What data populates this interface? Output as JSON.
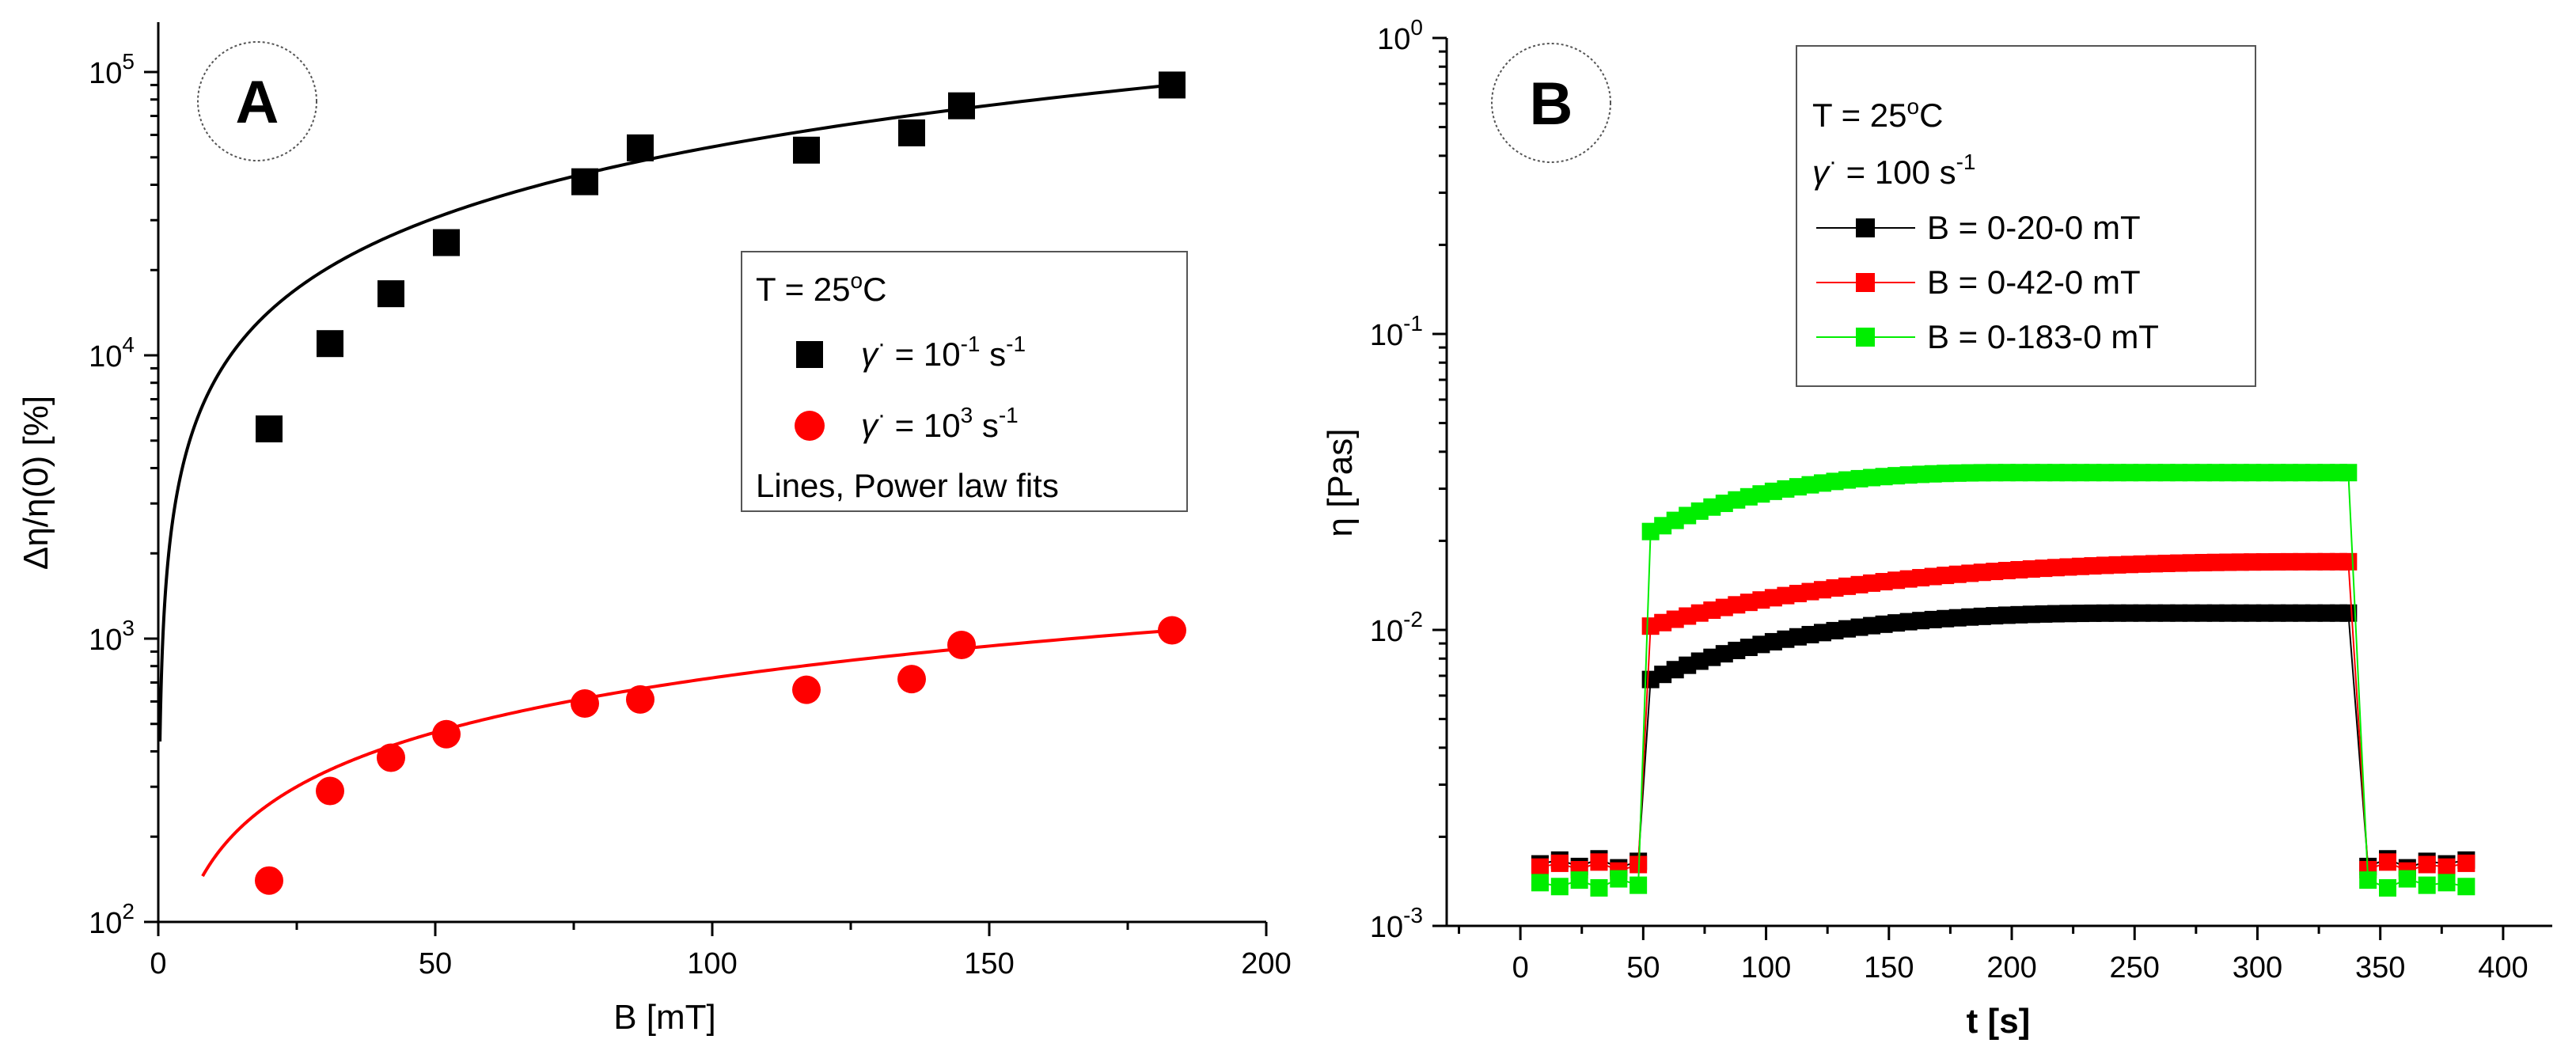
{
  "chart_data": [
    {
      "type": "scatter",
      "panel_label": "A",
      "xlabel": "B [mT]",
      "ylabel": "Δη/η(0)  [%]",
      "xlim": [
        0,
        200
      ],
      "ylim": [
        100,
        150000
      ],
      "yscale": "log",
      "x_ticks": [
        "0",
        "50",
        "100",
        "150",
        "200"
      ],
      "y_ticks": [
        {
          "base": "10",
          "exp": "2"
        },
        {
          "base": "10",
          "exp": "3"
        },
        {
          "base": "10",
          "exp": "4"
        },
        {
          "base": "10",
          "exp": "5"
        }
      ],
      "legend": {
        "title": "T = 25",
        "title_sup": "o",
        "title_tail": "C",
        "entries": [
          {
            "symbol": "square",
            "color": "#000000",
            "prefix": "γ",
            "dot": "·",
            "text": " = 10",
            "sup": "-1",
            "tail": " s",
            "tail_sup": "-1"
          },
          {
            "symbol": "circle",
            "color": "#ff0000",
            "prefix": "γ",
            "dot": "·",
            "text": " = 10",
            "sup": "3",
            "tail": " s",
            "tail_sup": "-1"
          }
        ],
        "note": "Lines, Power law fits"
      },
      "series": [
        {
          "name": "γ = 10^-1 s^-1",
          "marker": "square",
          "color": "#000000",
          "x": [
            20,
            31,
            42,
            52,
            77,
            87,
            117,
            136,
            145,
            183
          ],
          "y": [
            5500,
            11000,
            16500,
            25000,
            41000,
            54000,
            53000,
            61000,
            76000,
            90000
          ],
          "fit": {
            "a": 1180,
            "b": 0.832,
            "x_from": 0.3,
            "x_to": 183
          }
        },
        {
          "name": "γ = 10^3 s^-1",
          "marker": "circle",
          "color": "#ff0000",
          "x": [
            20,
            31,
            42,
            52,
            77,
            87,
            117,
            136,
            145,
            183
          ],
          "y": [
            140,
            290,
            380,
            460,
            590,
            610,
            660,
            720,
            950,
            1070
          ],
          "fit": {
            "a": 38.5,
            "b": 0.638,
            "x_from": 8,
            "x_to": 183
          }
        }
      ]
    },
    {
      "type": "line",
      "panel_label": "B",
      "xlabel": "t  [s]",
      "ylabel": "η  [Pas]",
      "xlim": [
        -30,
        420
      ],
      "ylim": [
        0.001,
        1
      ],
      "yscale": "log",
      "x_ticks": [
        "0",
        "50",
        "100",
        "150",
        "200",
        "250",
        "300",
        "350",
        "400"
      ],
      "y_ticks": [
        {
          "base": "10",
          "exp": "-3"
        },
        {
          "base": "10",
          "exp": "-2"
        },
        {
          "base": "10",
          "exp": "-1"
        },
        {
          "base": "10",
          "exp": "0"
        }
      ],
      "legend": {
        "title": "T = 25",
        "title_sup": "o",
        "title_tail": "C",
        "rate_prefix": "γ",
        "rate_dot": "·",
        "rate_text": " = 100 s",
        "rate_sup": "-1",
        "entries": [
          {
            "color": "#000000",
            "text": "B = 0-20-0 mT"
          },
          {
            "color": "#ff0000",
            "text": "B = 0-42-0 mT"
          },
          {
            "color": "#00ee00",
            "text": "B = 0-183-0 mT"
          }
        ]
      },
      "series": [
        {
          "name": "B = 0-20-0 mT",
          "color": "#000000",
          "off_level": 0.00162,
          "on_start": 0.0068,
          "on_end": 0.0114,
          "on_plateau_t": 250
        },
        {
          "name": "B = 0-42-0 mT",
          "color": "#ff0000",
          "off_level": 0.00158,
          "on_start": 0.0103,
          "on_end": 0.017,
          "on_plateau_t": 330
        },
        {
          "name": "B = 0-183-0 mT",
          "color": "#00ee00",
          "off_level": 0.0014,
          "on_start": 0.0215,
          "on_end": 0.034,
          "on_plateau_t": 200
        }
      ],
      "time_grid": {
        "first_off_end": 48,
        "on_start": 53,
        "on_end": 337,
        "second_off_start": 345,
        "last": 385,
        "off_step": 8,
        "on_step": 5
      }
    }
  ]
}
